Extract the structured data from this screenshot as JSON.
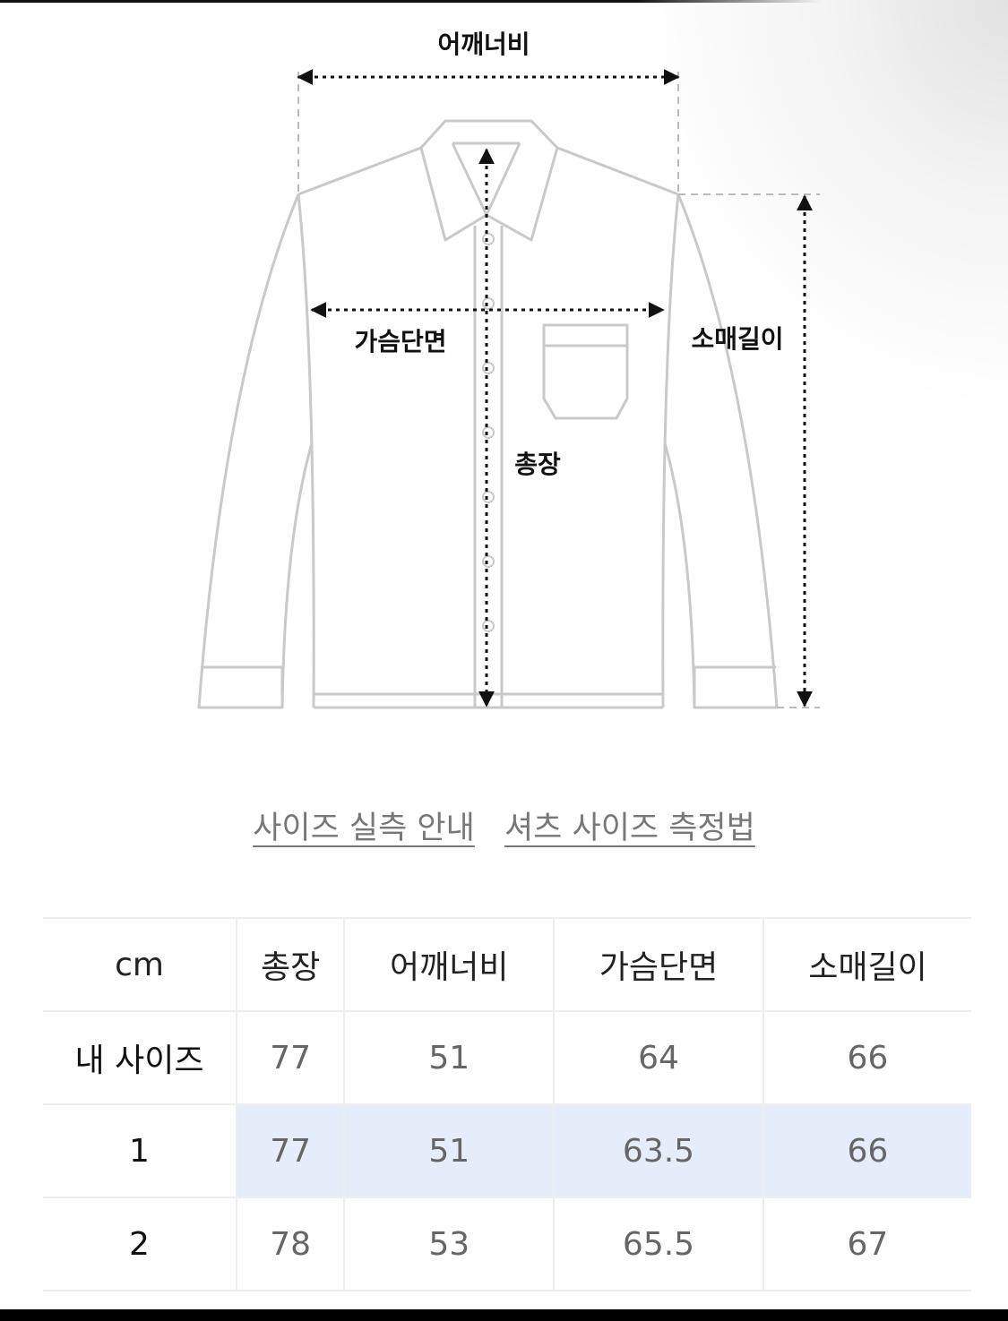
{
  "diagram": {
    "labels": {
      "shoulder": "어깨너비",
      "chest": "가슴단면",
      "length": "총장",
      "sleeve": "소매길이"
    }
  },
  "links": {
    "size_guide": "사이즈 실측 안내",
    "shirt_measure": "셔츠 사이즈 측정법"
  },
  "table": {
    "headers": [
      "cm",
      "총장",
      "어깨너비",
      "가슴단면",
      "소매길이"
    ],
    "rows": [
      [
        "내 사이즈",
        "77",
        "51",
        "64",
        "66"
      ],
      [
        "1",
        "77",
        "51",
        "63.5",
        "66"
      ],
      [
        "2",
        "78",
        "53",
        "65.5",
        "67"
      ]
    ],
    "highlight_color": "#e6edfa"
  }
}
